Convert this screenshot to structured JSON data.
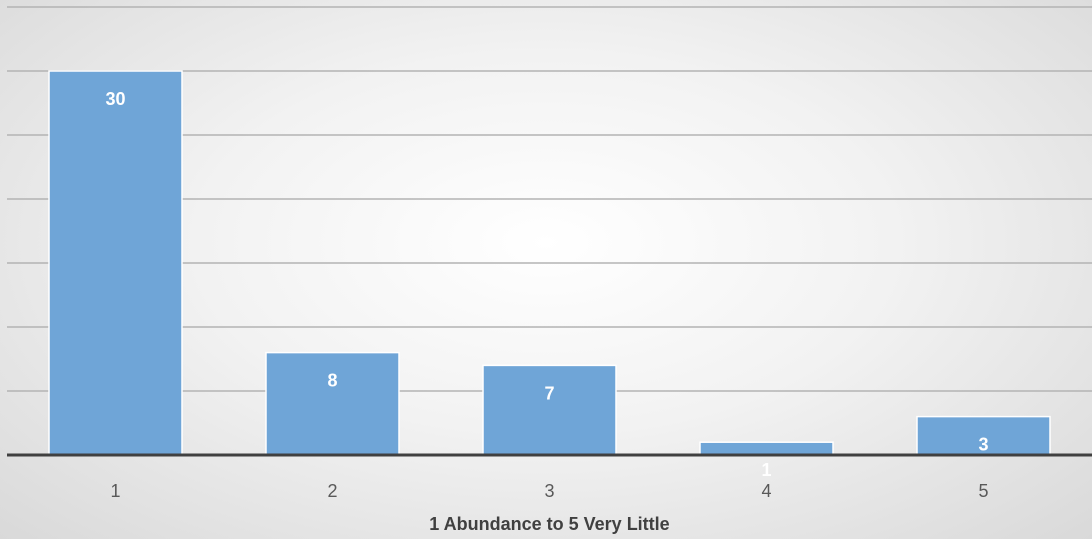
{
  "chart_data": {
    "type": "bar",
    "categories": [
      "1",
      "2",
      "3",
      "4",
      "5"
    ],
    "values": [
      30,
      8,
      7,
      1,
      3
    ],
    "title": "",
    "xlabel": "1 Abundance to 5 Very Little",
    "ylabel": "",
    "ylim": [
      0,
      35
    ],
    "grid": true,
    "legend": "none",
    "data_labels": true,
    "colors": {
      "bar_fill": "#6fa5d7",
      "bar_stroke": "#ffffff",
      "gridline": "#b3b3b3",
      "axis_line": "#404040",
      "data_label": "#ffffff",
      "tick_label": "#595959",
      "axis_title": "#404040"
    }
  }
}
